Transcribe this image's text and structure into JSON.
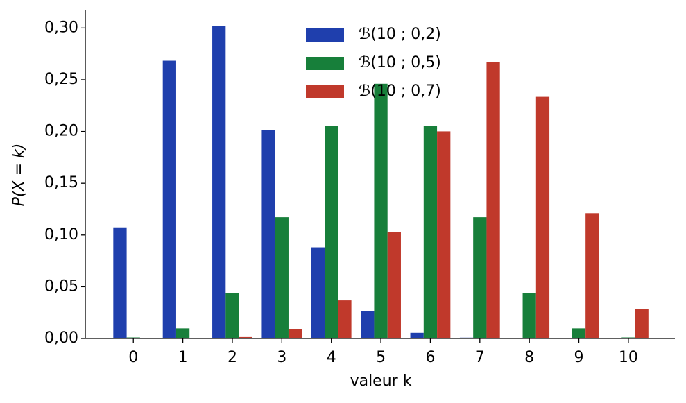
{
  "chart_data": {
    "type": "bar",
    "x_label": "valeur k",
    "y_label": "P(X = k)",
    "x": [
      0,
      1,
      2,
      3,
      4,
      5,
      6,
      7,
      8,
      9,
      10
    ],
    "series": [
      {
        "name": "ℬ(10 ; 0,2)",
        "color": "#1f3fad",
        "values": [
          0.1074,
          0.2684,
          0.302,
          0.2013,
          0.0881,
          0.0264,
          0.0055,
          0.0008,
          0.0001,
          0.0,
          0.0
        ]
      },
      {
        "name": "ℬ(10 ; 0,5)",
        "color": "#177f3a",
        "values": [
          0.001,
          0.0098,
          0.0439,
          0.1172,
          0.2051,
          0.2461,
          0.2051,
          0.1172,
          0.0439,
          0.0098,
          0.001
        ]
      },
      {
        "name": "ℬ(10 ; 0,7)",
        "color": "#c0392b",
        "values": [
          0.0,
          0.0001,
          0.0014,
          0.009,
          0.0368,
          0.1029,
          0.2001,
          0.2668,
          0.2335,
          0.1211,
          0.0282
        ]
      }
    ],
    "xlim": [
      -0.97,
      10.94
    ],
    "xticks": [
      0,
      1,
      2,
      3,
      4,
      5,
      6,
      7,
      8,
      9,
      10
    ],
    "ylim": [
      0,
      0.317
    ],
    "yticks": [
      {
        "value": 0,
        "label": "0,00"
      },
      {
        "value": 0.05,
        "label": "0,05"
      },
      {
        "value": 0.1,
        "label": "0,10"
      },
      {
        "value": 0.15,
        "label": "0,15"
      },
      {
        "value": 0.2,
        "label": "0,20"
      },
      {
        "value": 0.25,
        "label": "0,25"
      },
      {
        "value": 0.3,
        "label": "0,30"
      }
    ],
    "grid": false,
    "legend": "upper center"
  }
}
